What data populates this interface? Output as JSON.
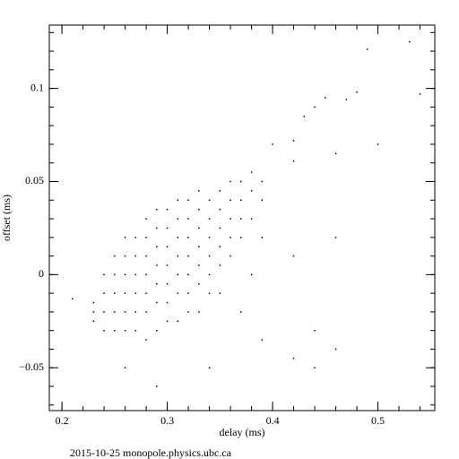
{
  "chart_data": {
    "type": "scatter",
    "x_label": "delay (ms)",
    "y_label": "offset (ms)",
    "footer": "2015-10-25  monopole.physics.ubc.ca",
    "color": "#000000",
    "xlim": [
      0.188,
      0.554
    ],
    "ylim": [
      -0.073,
      0.134
    ],
    "xticks": [
      0.2,
      0.3,
      0.4,
      0.5
    ],
    "yticks": [
      {
        "value": -0.05,
        "label": "−0.05"
      },
      0,
      0.05,
      0.1
    ],
    "xminor": [
      0.2,
      0.22,
      0.24,
      0.26,
      0.28,
      0.3,
      0.32,
      0.34,
      0.36,
      0.38,
      0.4,
      0.42,
      0.44,
      0.46,
      0.48,
      0.5,
      0.52,
      0.54
    ],
    "yminor": [
      -0.07,
      -0.06,
      -0.05,
      -0.04,
      -0.03,
      -0.02,
      -0.01,
      0,
      0.01,
      0.02,
      0.03,
      0.04,
      0.05,
      0.06,
      0.07,
      0.08,
      0.09,
      0.1,
      0.11,
      0.12,
      0.13
    ],
    "x": [
      0.23,
      0.23,
      0.23,
      0.24,
      0.24,
      0.24,
      0.24,
      0.25,
      0.25,
      0.25,
      0.25,
      0.25,
      0.26,
      0.26,
      0.26,
      0.26,
      0.26,
      0.26,
      0.27,
      0.27,
      0.27,
      0.27,
      0.27,
      0.27,
      0.28,
      0.28,
      0.28,
      0.28,
      0.28,
      0.28,
      0.28,
      0.29,
      0.29,
      0.29,
      0.29,
      0.29,
      0.29,
      0.29,
      0.3,
      0.3,
      0.3,
      0.3,
      0.3,
      0.3,
      0.3,
      0.31,
      0.31,
      0.31,
      0.31,
      0.31,
      0.31,
      0.31,
      0.32,
      0.32,
      0.32,
      0.32,
      0.32,
      0.32,
      0.32,
      0.33,
      0.33,
      0.33,
      0.33,
      0.33,
      0.33,
      0.33,
      0.34,
      0.34,
      0.34,
      0.34,
      0.34,
      0.34,
      0.35,
      0.35,
      0.35,
      0.35,
      0.35,
      0.35,
      0.36,
      0.36,
      0.36,
      0.36,
      0.36,
      0.37,
      0.37,
      0.37,
      0.37,
      0.37,
      0.38,
      0.38,
      0.38,
      0.38,
      0.39,
      0.39,
      0.39,
      0.53,
      0.49,
      0.54,
      0.45,
      0.47,
      0.48,
      0.43,
      0.44,
      0.4,
      0.42,
      0.46,
      0.42,
      0.42,
      0.44,
      0.39,
      0.42,
      0.34,
      0.29,
      0.26,
      0.21,
      0.46,
      0.5,
      0.46,
      0.44
    ],
    "y": [
      -0.02,
      -0.025,
      -0.015,
      -0.02,
      -0.01,
      -0.03,
      0.0,
      -0.02,
      -0.01,
      0.0,
      -0.03,
      0.01,
      -0.02,
      -0.01,
      0.0,
      0.01,
      -0.03,
      0.02,
      -0.02,
      -0.01,
      0.0,
      0.01,
      0.02,
      -0.03,
      -0.02,
      -0.01,
      0.0,
      0.01,
      0.02,
      0.03,
      -0.035,
      -0.015,
      -0.005,
      0.005,
      0.015,
      0.025,
      0.035,
      -0.03,
      -0.015,
      -0.005,
      0.005,
      0.015,
      0.025,
      0.035,
      -0.025,
      -0.01,
      0.0,
      0.01,
      0.02,
      0.03,
      0.04,
      -0.025,
      -0.01,
      0.0,
      0.01,
      0.02,
      0.03,
      0.04,
      -0.02,
      -0.005,
      0.005,
      0.015,
      0.025,
      0.035,
      0.045,
      -0.02,
      0.0,
      0.01,
      0.02,
      0.03,
      0.04,
      -0.01,
      0.005,
      0.015,
      0.025,
      0.035,
      0.045,
      -0.01,
      0.01,
      0.02,
      0.03,
      0.04,
      0.05,
      0.02,
      0.03,
      0.04,
      0.05,
      -0.02,
      0.03,
      0.045,
      0.055,
      0.0,
      0.04,
      0.05,
      0.02,
      0.125,
      0.121,
      0.097,
      0.095,
      0.094,
      0.098,
      0.085,
      0.09,
      0.07,
      0.072,
      0.065,
      0.061,
      0.01,
      -0.05,
      -0.035,
      -0.045,
      -0.05,
      -0.06,
      -0.05,
      -0.013,
      -0.04,
      0.07,
      0.02,
      -0.03
    ]
  }
}
